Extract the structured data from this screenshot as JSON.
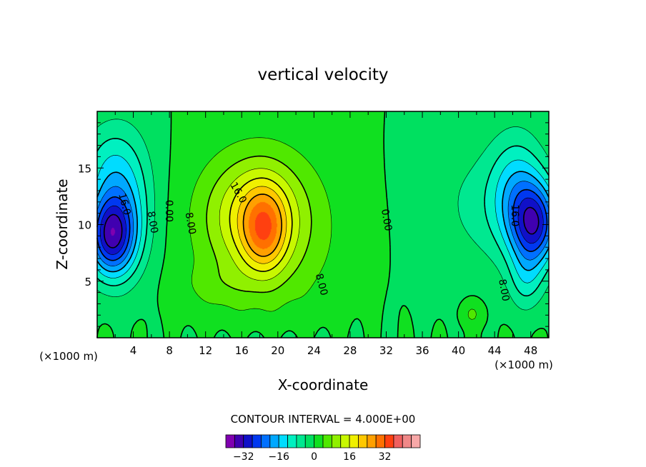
{
  "chart_data": {
    "type": "heatmap",
    "title": "vertical velocity",
    "xlabel": "X-coordinate",
    "ylabel": "Z-coordinate",
    "xunit_left": "(×1000 m)",
    "xunit_right": "(×1000 m)",
    "xlim": [
      0,
      50
    ],
    "ylim": [
      0,
      20
    ],
    "xticks": [
      "4",
      "8",
      "12",
      "16",
      "20",
      "24",
      "28",
      "32",
      "36",
      "40",
      "44",
      "48"
    ],
    "yticks": [
      "5",
      "10",
      "15"
    ],
    "contour_interval_text": "CONTOUR INTERVAL = 4.000E+00",
    "contour_interval": 4,
    "contour_labels": [
      {
        "text": "16.0",
        "x": 3.0,
        "z": 11.8,
        "rot": 75
      },
      {
        "text": "8.00",
        "x": 6.1,
        "z": 10.2,
        "rot": 80
      },
      {
        "text": "0.00",
        "x": 7.9,
        "z": 11.2,
        "rot": 90
      },
      {
        "text": "8.00",
        "x": 10.3,
        "z": 10.1,
        "rot": 80
      },
      {
        "text": "16.0",
        "x": 15.6,
        "z": 12.8,
        "rot": 60
      },
      {
        "text": "8.00",
        "x": 24.8,
        "z": 4.7,
        "rot": 75
      },
      {
        "text": "0.00",
        "x": 32.0,
        "z": 10.4,
        "rot": 80
      },
      {
        "text": "16.0",
        "x": 46.2,
        "z": 10.8,
        "rot": 90
      },
      {
        "text": "8.00",
        "x": 45.0,
        "z": 4.2,
        "rot": 80
      }
    ],
    "colorbar": {
      "colors": [
        "#8000b0",
        "#4000b0",
        "#1010c8",
        "#0038f0",
        "#0070ff",
        "#00a8ff",
        "#00dcff",
        "#00f0c0",
        "#00e890",
        "#00e060",
        "#10e020",
        "#50e800",
        "#90f000",
        "#c8f800",
        "#f0f000",
        "#ffc800",
        "#ffa000",
        "#ff7000",
        "#ff4010",
        "#f06060",
        "#f08888",
        "#f8a8a8"
      ],
      "tick_labels": [
        "−32",
        "−16",
        "0",
        "16",
        "32"
      ],
      "tick_values": [
        -32,
        -16,
        0,
        16,
        32
      ],
      "min": -40,
      "max": 48
    }
  }
}
